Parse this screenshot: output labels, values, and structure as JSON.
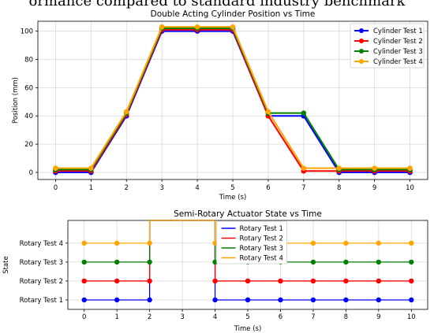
{
  "heading": "ormance compared to standard industry benchmark",
  "colors": {
    "blue": "#0000ff",
    "red": "#ff0000",
    "green": "#008000",
    "orange": "#ffa500"
  },
  "chart_data": [
    {
      "type": "line",
      "title": "Double Acting Cylinder Position vs Time",
      "xlabel": "Time (s)",
      "ylabel": "Position (mm)",
      "xlim": [
        -0.5,
        10.5
      ],
      "ylim": [
        -5,
        107
      ],
      "xticks": [
        0,
        1,
        2,
        3,
        4,
        5,
        6,
        7,
        8,
        9,
        10
      ],
      "yticks": [
        0,
        20,
        40,
        60,
        80,
        100
      ],
      "grid": true,
      "legend": "top-right",
      "x": [
        0,
        1,
        2,
        3,
        4,
        5,
        6,
        7,
        8,
        9,
        10
      ],
      "series": [
        {
          "name": "Cylinder Test 1",
          "color": "blue",
          "values": [
            0,
            0,
            40,
            100,
            100,
            100,
            40,
            40,
            0,
            0,
            0
          ]
        },
        {
          "name": "Cylinder Test 2",
          "color": "red",
          "values": [
            1,
            1,
            41,
            101,
            101,
            101,
            40,
            1,
            1,
            1,
            1
          ]
        },
        {
          "name": "Cylinder Test 3",
          "color": "green",
          "values": [
            2,
            2,
            42,
            102,
            102,
            102,
            42,
            42,
            2,
            2,
            2
          ]
        },
        {
          "name": "Cylinder Test 4",
          "color": "orange",
          "values": [
            3,
            3,
            43,
            103,
            103,
            103,
            43,
            3,
            3,
            3,
            3
          ]
        }
      ]
    },
    {
      "type": "line",
      "title": "Semi-Rotary Actuator State vs Time",
      "xlabel": "Time (s)",
      "ylabel": "State",
      "xlim": [
        -0.5,
        10.5
      ],
      "ylim": [
        0.5,
        5.2
      ],
      "xticks": [
        0,
        1,
        2,
        3,
        4,
        5,
        6,
        7,
        8,
        9,
        10
      ],
      "ytick_labels": [
        "Rotary Test 1",
        "Rotary Test 2",
        "Rotary Test 3",
        "Rotary Test 4"
      ],
      "grid": true,
      "legend": "top-center",
      "series": [
        {
          "name": "Rotary Test 1",
          "color": "blue",
          "level": 1,
          "marker_x": [
            0,
            1,
            2,
            4,
            5,
            6,
            7,
            8,
            9,
            10
          ]
        },
        {
          "name": "Rotary Test 2",
          "color": "red",
          "level": 2,
          "marker_x": [
            0,
            1,
            2,
            4,
            5,
            6,
            7,
            8,
            9,
            10
          ]
        },
        {
          "name": "Rotary Test 3",
          "color": "green",
          "level": 3,
          "marker_x": [
            0,
            1,
            2,
            4,
            5,
            6,
            7,
            8,
            9,
            10
          ]
        },
        {
          "name": "Rotary Test 4",
          "color": "orange",
          "level": 4,
          "marker_x": [
            0,
            1,
            2,
            4,
            5,
            6,
            7,
            8,
            9,
            10
          ]
        }
      ]
    }
  ]
}
